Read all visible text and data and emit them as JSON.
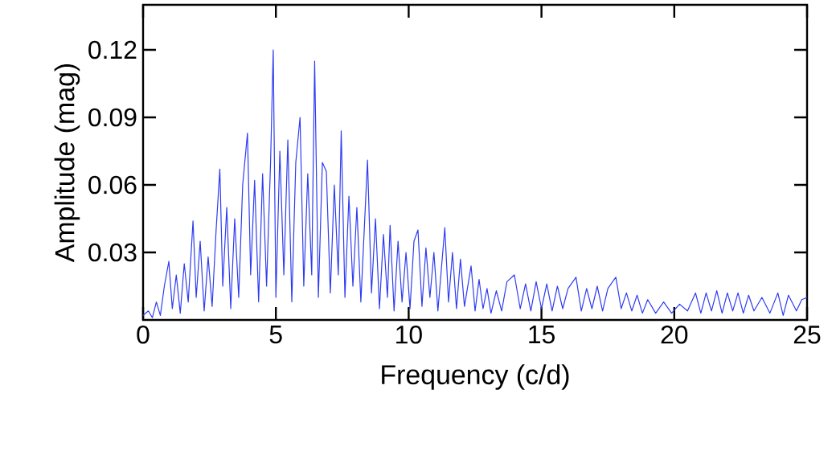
{
  "chart_data": {
    "type": "line",
    "xlabel": "Frequency (c/d)",
    "ylabel": "Amplitude (mag)",
    "xlim": [
      0,
      25
    ],
    "ylim": [
      0,
      0.14
    ],
    "xticks": [
      0,
      5,
      10,
      15,
      20,
      25
    ],
    "yticks": [
      0.03,
      0.06,
      0.09,
      0.12
    ],
    "series": [
      {
        "color": "#2e3cf0",
        "x": [
          0,
          0.2,
          0.35,
          0.5,
          0.65,
          0.8,
          0.97,
          1.1,
          1.25,
          1.4,
          1.55,
          1.7,
          1.88,
          2.0,
          2.15,
          2.3,
          2.45,
          2.6,
          2.75,
          2.89,
          3.0,
          3.15,
          3.3,
          3.45,
          3.6,
          3.75,
          3.93,
          4.05,
          4.2,
          4.35,
          4.5,
          4.65,
          4.8,
          4.9,
          5.0,
          5.15,
          5.3,
          5.45,
          5.6,
          5.75,
          5.91,
          6.05,
          6.2,
          6.35,
          6.46,
          6.6,
          6.75,
          6.9,
          7.05,
          7.2,
          7.35,
          7.46,
          7.6,
          7.75,
          7.9,
          8.05,
          8.2,
          8.45,
          8.6,
          8.75,
          8.9,
          9.05,
          9.2,
          9.3,
          9.45,
          9.6,
          9.75,
          9.9,
          10.05,
          10.2,
          10.35,
          10.5,
          10.65,
          10.8,
          10.95,
          11.1,
          11.36,
          11.5,
          11.65,
          11.8,
          11.95,
          12.1,
          12.35,
          12.5,
          12.65,
          12.8,
          12.95,
          13.1,
          13.3,
          13.5,
          13.7,
          13.98,
          14.2,
          14.4,
          14.6,
          14.8,
          15.0,
          15.2,
          15.4,
          15.6,
          15.8,
          16.0,
          16.3,
          16.5,
          16.7,
          16.9,
          17.1,
          17.3,
          17.5,
          17.8,
          18.0,
          18.2,
          18.4,
          18.6,
          18.8,
          19.0,
          19.3,
          19.6,
          19.9,
          20.2,
          20.5,
          20.8,
          21.0,
          21.2,
          21.4,
          21.6,
          21.8,
          22.0,
          22.2,
          22.4,
          22.6,
          22.8,
          23.0,
          23.3,
          23.6,
          23.9,
          24.1,
          24.3,
          24.6,
          24.8,
          25
        ],
        "values": [
          0.002,
          0.004,
          0.001,
          0.008,
          0.002,
          0.015,
          0.026,
          0.005,
          0.02,
          0.003,
          0.025,
          0.008,
          0.044,
          0.01,
          0.035,
          0.004,
          0.028,
          0.006,
          0.04,
          0.067,
          0.015,
          0.05,
          0.005,
          0.045,
          0.01,
          0.06,
          0.083,
          0.02,
          0.062,
          0.008,
          0.065,
          0.015,
          0.07,
          0.12,
          0.01,
          0.075,
          0.02,
          0.08,
          0.008,
          0.07,
          0.09,
          0.015,
          0.065,
          0.02,
          0.115,
          0.01,
          0.07,
          0.066,
          0.012,
          0.06,
          0.02,
          0.084,
          0.01,
          0.055,
          0.015,
          0.05,
          0.008,
          0.071,
          0.012,
          0.045,
          0.005,
          0.038,
          0.01,
          0.042,
          0.004,
          0.035,
          0.008,
          0.03,
          0.005,
          0.035,
          0.04,
          0.006,
          0.032,
          0.01,
          0.03,
          0.004,
          0.041,
          0.008,
          0.03,
          0.005,
          0.027,
          0.006,
          0.024,
          0.004,
          0.018,
          0.005,
          0.014,
          0.003,
          0.013,
          0.004,
          0.017,
          0.02,
          0.005,
          0.016,
          0.004,
          0.017,
          0.005,
          0.016,
          0.004,
          0.015,
          0.005,
          0.014,
          0.019,
          0.004,
          0.014,
          0.005,
          0.015,
          0.004,
          0.014,
          0.019,
          0.005,
          0.012,
          0.004,
          0.011,
          0.003,
          0.009,
          0.003,
          0.008,
          0.003,
          0.007,
          0.004,
          0.012,
          0.003,
          0.012,
          0.004,
          0.013,
          0.003,
          0.012,
          0.004,
          0.012,
          0.003,
          0.011,
          0.004,
          0.01,
          0.003,
          0.012,
          0.002,
          0.011,
          0.004,
          0.009,
          0.01
        ]
      }
    ]
  }
}
